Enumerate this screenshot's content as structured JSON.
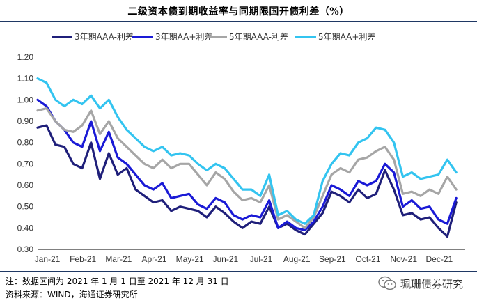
{
  "title": "二级资本债到期收益率与同期限国开债利差（%）",
  "note": "注：数据区间为 2021 年 1 月 1 日至 2021 年 12 月 31 日",
  "source": "资料来源：WIND，海通证券研究所",
  "watermark": "珮珊债券研究",
  "watermark_icon": "wechat-icon",
  "chart_data": {
    "type": "line",
    "title": "二级资本债到期收益率与同期限国开债利差（%）",
    "xlabel": "",
    "ylabel": "",
    "ylim": [
      0.3,
      1.2
    ],
    "yticks": [
      0.3,
      0.4,
      0.5,
      0.6,
      0.7,
      0.8,
      0.9,
      1.0,
      1.1,
      1.2
    ],
    "x_tick_labels": [
      "Jan-21",
      "Feb-21",
      "Mar-21",
      "Apr-21",
      "May-21",
      "Jun-21",
      "Jul-21",
      "Aug-21",
      "Sep-21",
      "Oct-21",
      "Nov-21",
      "Dec-21"
    ],
    "grid": false,
    "legend_position": "top",
    "x_months": [
      0,
      0.25,
      0.5,
      0.75,
      1,
      1.25,
      1.5,
      1.75,
      2,
      2.25,
      2.5,
      2.75,
      3,
      3.25,
      3.5,
      3.75,
      4,
      4.25,
      4.5,
      4.75,
      5,
      5.25,
      5.5,
      5.75,
      6,
      6.25,
      6.5,
      6.75,
      7,
      7.25,
      7.5,
      7.75,
      8,
      8.25,
      8.5,
      8.75,
      9,
      9.25,
      9.5,
      9.75,
      10,
      10.25,
      10.5,
      10.75,
      11,
      11.25,
      11.5,
      11.75
    ],
    "series": [
      {
        "name": "3年期AAA-利差",
        "color": "#1f1f7a",
        "values": [
          0.87,
          0.88,
          0.79,
          0.78,
          0.7,
          0.68,
          0.8,
          0.63,
          0.75,
          0.65,
          0.68,
          0.58,
          0.55,
          0.52,
          0.53,
          0.48,
          0.5,
          0.49,
          0.48,
          0.45,
          0.5,
          0.47,
          0.43,
          0.4,
          0.43,
          0.42,
          0.5,
          0.4,
          0.42,
          0.39,
          0.37,
          0.42,
          0.47,
          0.57,
          0.55,
          0.52,
          0.58,
          0.54,
          0.56,
          0.67,
          0.58,
          0.46,
          0.47,
          0.44,
          0.45,
          0.4,
          0.36,
          0.52
        ]
      },
      {
        "name": "3年期AA+利差",
        "color": "#1a1ad6",
        "values": [
          1.0,
          0.97,
          0.9,
          0.86,
          0.8,
          0.78,
          0.9,
          0.76,
          0.85,
          0.73,
          0.7,
          0.65,
          0.6,
          0.58,
          0.61,
          0.54,
          0.55,
          0.56,
          0.51,
          0.49,
          0.54,
          0.52,
          0.46,
          0.44,
          0.46,
          0.45,
          0.53,
          0.4,
          0.43,
          0.4,
          0.39,
          0.43,
          0.5,
          0.6,
          0.58,
          0.55,
          0.62,
          0.6,
          0.62,
          0.7,
          0.66,
          0.5,
          0.53,
          0.49,
          0.5,
          0.44,
          0.42,
          0.54
        ]
      },
      {
        "name": "5年期AAA-利差",
        "color": "#a6a6a6",
        "values": [
          0.95,
          0.96,
          0.9,
          0.86,
          0.85,
          0.88,
          0.95,
          0.84,
          0.9,
          0.82,
          0.78,
          0.74,
          0.7,
          0.68,
          0.72,
          0.68,
          0.7,
          0.7,
          0.65,
          0.6,
          0.66,
          0.63,
          0.57,
          0.53,
          0.54,
          0.52,
          0.6,
          0.44,
          0.46,
          0.43,
          0.4,
          0.45,
          0.55,
          0.65,
          0.68,
          0.66,
          0.72,
          0.73,
          0.76,
          0.78,
          0.72,
          0.56,
          0.57,
          0.55,
          0.58,
          0.56,
          0.64,
          0.58
        ]
      },
      {
        "name": "5年期AA+利差",
        "color": "#33c4f0",
        "values": [
          1.1,
          1.08,
          1.0,
          0.97,
          1.0,
          0.98,
          1.02,
          0.96,
          1.0,
          0.92,
          0.86,
          0.82,
          0.78,
          0.76,
          0.78,
          0.74,
          0.75,
          0.74,
          0.7,
          0.67,
          0.7,
          0.68,
          0.63,
          0.58,
          0.58,
          0.55,
          0.65,
          0.46,
          0.48,
          0.44,
          0.42,
          0.46,
          0.62,
          0.7,
          0.75,
          0.74,
          0.8,
          0.82,
          0.87,
          0.86,
          0.8,
          0.64,
          0.66,
          0.63,
          0.64,
          0.65,
          0.72,
          0.66
        ]
      }
    ]
  }
}
